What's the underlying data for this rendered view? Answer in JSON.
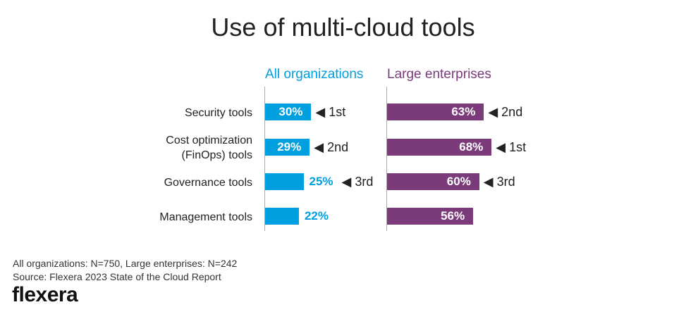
{
  "chart_data": {
    "type": "bar",
    "title": "Use of multi-cloud tools",
    "categories": [
      "Security tools",
      "Cost optimization (FinOps) tools",
      "Governance tools",
      "Management tools"
    ],
    "category_lines": [
      [
        "Security tools"
      ],
      [
        "Cost optimization",
        "(FinOps) tools"
      ],
      [
        "Governance tools"
      ],
      [
        "Management tools"
      ]
    ],
    "series": [
      {
        "name": "All organizations",
        "color": "#009fdf",
        "values": [
          30,
          29,
          25,
          22
        ],
        "labels": [
          "30%",
          "29%",
          "25%",
          "22%"
        ],
        "ranks": [
          "1st",
          "2nd",
          "3rd",
          ""
        ]
      },
      {
        "name": "Large enterprises",
        "color": "#7b3b7b",
        "values": [
          63,
          68,
          60,
          56
        ],
        "labels": [
          "63%",
          "68%",
          "60%",
          "56%"
        ],
        "ranks": [
          "2nd",
          "1st",
          "3rd",
          ""
        ]
      }
    ],
    "xlim": [
      0,
      100
    ],
    "grid": false
  },
  "footnote": {
    "sample": "All organizations: N=750, Large enterprises: N=242",
    "source": "Source: Flexera 2023 State of the Cloud Report"
  },
  "logo": "flexera"
}
